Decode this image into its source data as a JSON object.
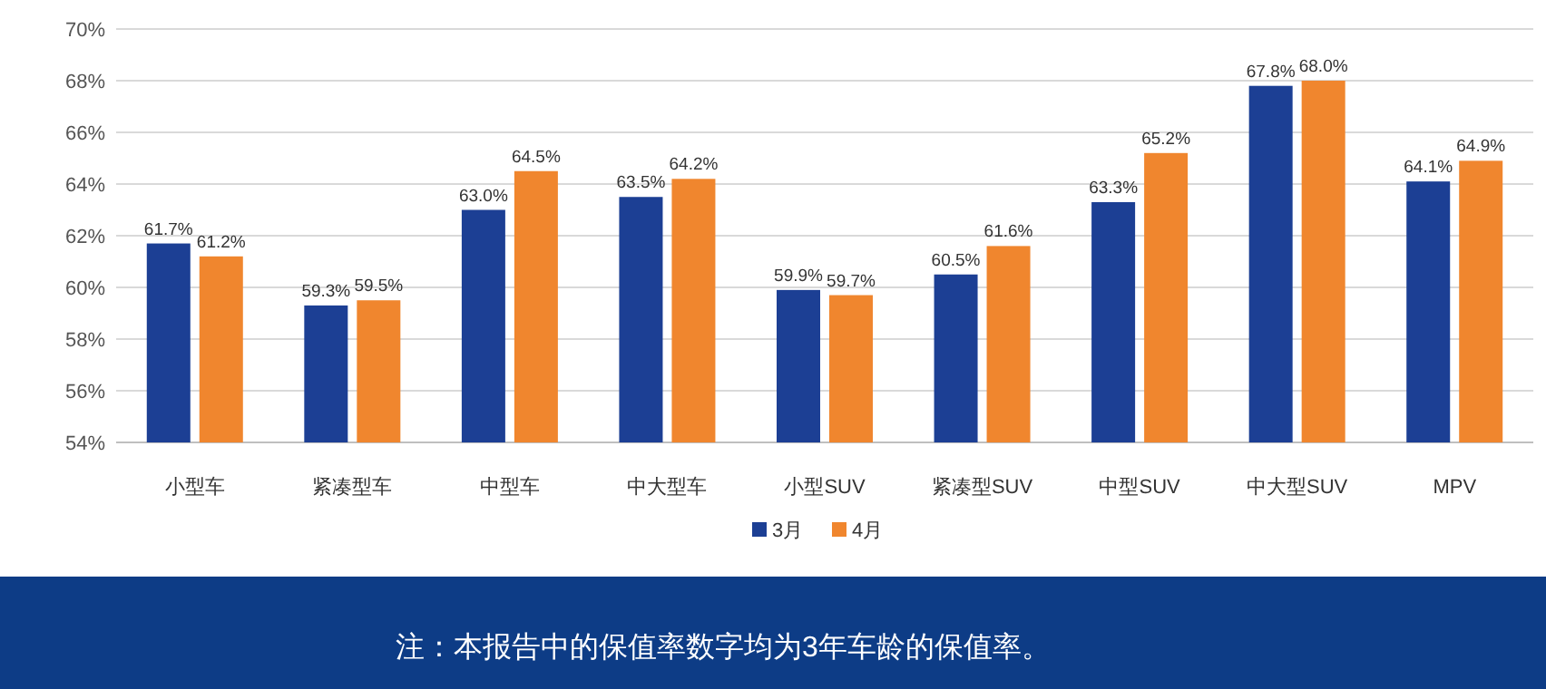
{
  "chart_data": {
    "type": "bar",
    "categories": [
      "小型车",
      "紧凑型车",
      "中型车",
      "中大型车",
      "小型SUV",
      "紧凑型SUV",
      "中型SUV",
      "中大型SUV",
      "MPV"
    ],
    "series": [
      {
        "name": "3月",
        "color": "#1c3f94",
        "values": [
          61.7,
          59.3,
          63.0,
          63.5,
          59.9,
          60.5,
          63.3,
          67.8,
          64.1
        ],
        "value_labels": [
          "61.7%",
          "59.3%",
          "63.0%",
          "63.5%",
          "59.9%",
          "60.5%",
          "63.3%",
          "67.8%",
          "64.1%"
        ]
      },
      {
        "name": "4月",
        "color": "#f0862e",
        "values": [
          61.2,
          59.5,
          64.5,
          64.2,
          59.7,
          61.6,
          65.2,
          68.0,
          64.9
        ],
        "value_labels": [
          "61.2%",
          "59.5%",
          "64.5%",
          "64.2%",
          "59.7%",
          "61.6%",
          "65.2%",
          "68.0%",
          "64.9%"
        ]
      }
    ],
    "ylim": [
      54,
      70
    ],
    "yticks": [
      {
        "value": 54,
        "label": "54%"
      },
      {
        "value": 56,
        "label": "56%"
      },
      {
        "value": 58,
        "label": "58%"
      },
      {
        "value": 60,
        "label": "60%"
      },
      {
        "value": 62,
        "label": "62%"
      },
      {
        "value": 64,
        "label": "64%"
      },
      {
        "value": 66,
        "label": "66%"
      },
      {
        "value": 68,
        "label": "68%"
      },
      {
        "value": 70,
        "label": "70%"
      }
    ],
    "grid": "y",
    "legend": "bottom",
    "annotations": [
      "注：本报告中的保值率数字均为3年车龄的保值率。"
    ]
  }
}
